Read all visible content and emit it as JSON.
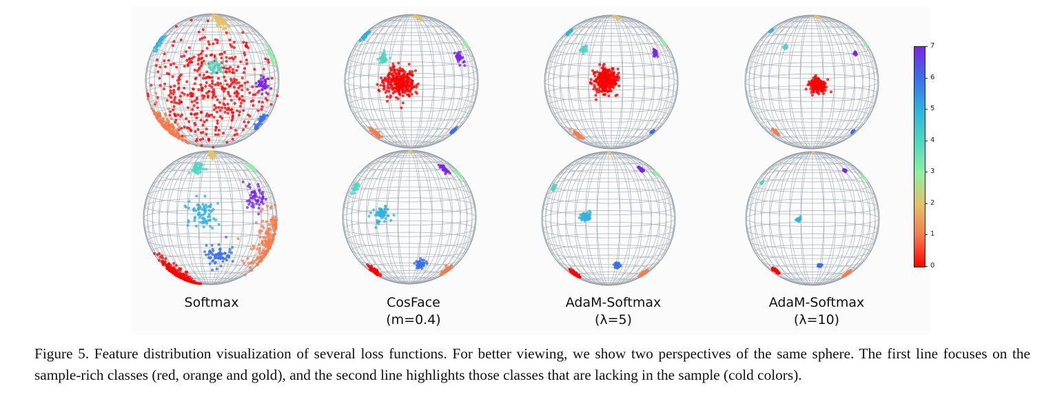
{
  "figure": {
    "panel_labels": [
      {
        "line1": "Softmax",
        "line2": ""
      },
      {
        "line1": "CosFace",
        "line2": "(m=0.4)"
      },
      {
        "line1": "AdaM-Softmax",
        "line2": "(λ=5)"
      },
      {
        "line1": "AdaM-Softmax",
        "line2": "(λ=10)"
      }
    ],
    "colorbar": {
      "ticks": [
        "0",
        "1",
        "2",
        "3",
        "4",
        "5",
        "6",
        "7"
      ],
      "class_colors": [
        "#ff0000",
        "#f47c4c",
        "#e3c26a",
        "#8ef0a0",
        "#4fd6c0",
        "#2fb2e0",
        "#3b6fe8",
        "#7a24e8"
      ]
    },
    "views": [
      {
        "row": 1,
        "method": "Softmax",
        "clusters": [
          {
            "cls": 0,
            "lat": -2,
            "lon": -3,
            "spread": 26,
            "n": 420
          },
          {
            "cls": 1,
            "lat": -42,
            "lon": -68,
            "spread": 11,
            "n": 170
          },
          {
            "cls": 2,
            "lat": 72,
            "lon": 22,
            "spread": 7,
            "n": 110
          },
          {
            "cls": 3,
            "lat": 25,
            "lon": 80,
            "spread": 4,
            "n": 30
          },
          {
            "cls": 4,
            "lat": 17,
            "lon": 2,
            "spread": 4,
            "n": 45
          },
          {
            "cls": 5,
            "lat": 35,
            "lon": -80,
            "spread": 4,
            "n": 30
          },
          {
            "cls": 6,
            "lat": -35,
            "lon": 62,
            "spread": 4,
            "n": 40
          },
          {
            "cls": 7,
            "lat": 2,
            "lon": 48,
            "spread": 4,
            "n": 40
          }
        ]
      },
      {
        "row": 1,
        "method": "CosFace",
        "clusters": [
          {
            "cls": 0,
            "lat": 6,
            "lon": -10,
            "spread": 6,
            "n": 300
          },
          {
            "cls": 1,
            "lat": -48,
            "lon": -52,
            "spread": 3,
            "n": 60
          },
          {
            "cls": 2,
            "lat": 80,
            "lon": 30,
            "spread": 3,
            "n": 45
          },
          {
            "cls": 3,
            "lat": 35,
            "lon": 82,
            "spread": 2,
            "n": 25
          },
          {
            "cls": 4,
            "lat": 26,
            "lon": -28,
            "spread": 2.5,
            "n": 40
          },
          {
            "cls": 5,
            "lat": 45,
            "lon": -78,
            "spread": 2.5,
            "n": 35
          },
          {
            "cls": 6,
            "lat": -45,
            "lon": 62,
            "spread": 2,
            "n": 25
          },
          {
            "cls": 7,
            "lat": 25,
            "lon": 53,
            "spread": 2.5,
            "n": 30
          }
        ]
      },
      {
        "row": 1,
        "method": "AdaM-Softmax λ=5",
        "clusters": [
          {
            "cls": 0,
            "lat": 8,
            "lon": -5,
            "spread": 5,
            "n": 300
          },
          {
            "cls": 1,
            "lat": -48,
            "lon": -48,
            "spread": 2.5,
            "n": 55
          },
          {
            "cls": 2,
            "lat": 82,
            "lon": 35,
            "spread": 2.5,
            "n": 40
          },
          {
            "cls": 3,
            "lat": 38,
            "lon": 82,
            "spread": 1.5,
            "n": 20
          },
          {
            "cls": 4,
            "lat": 35,
            "lon": -30,
            "spread": 1.5,
            "n": 30
          },
          {
            "cls": 5,
            "lat": 50,
            "lon": -78,
            "spread": 2,
            "n": 30
          },
          {
            "cls": 6,
            "lat": -45,
            "lon": 60,
            "spread": 1.5,
            "n": 20
          },
          {
            "cls": 7,
            "lat": 30,
            "lon": 50,
            "spread": 1.5,
            "n": 25
          }
        ]
      },
      {
        "row": 1,
        "method": "AdaM-Softmax λ=10",
        "clusters": [
          {
            "cls": 0,
            "lat": 4,
            "lon": 5,
            "spread": 3,
            "n": 200
          },
          {
            "cls": 1,
            "lat": -45,
            "lon": -48,
            "spread": 1.5,
            "n": 35
          },
          {
            "cls": 2,
            "lat": 82,
            "lon": 40,
            "spread": 1.5,
            "n": 30
          },
          {
            "cls": 3,
            "lat": 36,
            "lon": 84,
            "spread": 1,
            "n": 15
          },
          {
            "cls": 4,
            "lat": 38,
            "lon": -30,
            "spread": 1,
            "n": 20
          },
          {
            "cls": 5,
            "lat": 52,
            "lon": -80,
            "spread": 1,
            "n": 20
          },
          {
            "cls": 6,
            "lat": -45,
            "lon": 60,
            "spread": 1,
            "n": 15
          },
          {
            "cls": 7,
            "lat": 30,
            "lon": 48,
            "spread": 1,
            "n": 20
          }
        ]
      },
      {
        "row": 2,
        "method": "Softmax",
        "clusters": [
          {
            "cls": 0,
            "lat": -55,
            "lon": -58,
            "spread": 10,
            "n": 230
          },
          {
            "cls": 1,
            "lat": -20,
            "lon": 70,
            "spread": 13,
            "n": 180
          },
          {
            "cls": 2,
            "lat": 82,
            "lon": 10,
            "spread": 5,
            "n": 80
          },
          {
            "cls": 3,
            "lat": 52,
            "lon": 80,
            "spread": 3,
            "n": 30
          },
          {
            "cls": 4,
            "lat": 55,
            "lon": -20,
            "spread": 4,
            "n": 45
          },
          {
            "cls": 5,
            "lat": 10,
            "lon": -8,
            "spread": 7,
            "n": 75
          },
          {
            "cls": 6,
            "lat": -28,
            "lon": 10,
            "spread": 6,
            "n": 65
          },
          {
            "cls": 7,
            "lat": 22,
            "lon": 48,
            "spread": 5,
            "n": 55
          }
        ]
      },
      {
        "row": 2,
        "method": "CosFace",
        "clusters": [
          {
            "cls": 0,
            "lat": -50,
            "lon": -55,
            "spread": 3,
            "n": 90
          },
          {
            "cls": 1,
            "lat": -50,
            "lon": 58,
            "spread": 3,
            "n": 90
          },
          {
            "cls": 2,
            "lat": 85,
            "lon": 10,
            "spread": 2,
            "n": 35
          },
          {
            "cls": 3,
            "lat": 42,
            "lon": 82,
            "spread": 2,
            "n": 20
          },
          {
            "cls": 4,
            "lat": 30,
            "lon": -68,
            "spread": 2.5,
            "n": 30
          },
          {
            "cls": 5,
            "lat": 8,
            "lon": -25,
            "spread": 4,
            "n": 60
          },
          {
            "cls": 6,
            "lat": -38,
            "lon": 12,
            "spread": 2.5,
            "n": 55
          },
          {
            "cls": 7,
            "lat": 50,
            "lon": 55,
            "spread": 2.5,
            "n": 45
          }
        ]
      },
      {
        "row": 2,
        "method": "AdaM-Softmax λ=5",
        "clusters": [
          {
            "cls": 0,
            "lat": -52,
            "lon": -55,
            "spread": 2.5,
            "n": 80
          },
          {
            "cls": 1,
            "lat": -52,
            "lon": 58,
            "spread": 2.5,
            "n": 80
          },
          {
            "cls": 2,
            "lat": 86,
            "lon": 10,
            "spread": 1.5,
            "n": 30
          },
          {
            "cls": 3,
            "lat": 44,
            "lon": 80,
            "spread": 1.5,
            "n": 20
          },
          {
            "cls": 4,
            "lat": 30,
            "lon": -70,
            "spread": 1.5,
            "n": 25
          },
          {
            "cls": 5,
            "lat": 8,
            "lon": -20,
            "spread": 2,
            "n": 50
          },
          {
            "cls": 6,
            "lat": -38,
            "lon": 10,
            "spread": 1.5,
            "n": 45
          },
          {
            "cls": 7,
            "lat": 52,
            "lon": 52,
            "spread": 1.5,
            "n": 40
          }
        ]
      },
      {
        "row": 2,
        "method": "AdaM-Softmax λ=10",
        "clusters": [
          {
            "cls": 0,
            "lat": -48,
            "lon": -55,
            "spread": 2,
            "n": 60
          },
          {
            "cls": 1,
            "lat": -52,
            "lon": 58,
            "spread": 2,
            "n": 60
          },
          {
            "cls": 2,
            "lat": 86,
            "lon": 10,
            "spread": 1,
            "n": 20
          },
          {
            "cls": 3,
            "lat": 40,
            "lon": 80,
            "spread": 1,
            "n": 15
          },
          {
            "cls": 4,
            "lat": 35,
            "lon": -68,
            "spread": 1,
            "n": 15
          },
          {
            "cls": 5,
            "lat": 6,
            "lon": -12,
            "spread": 1,
            "n": 25
          },
          {
            "cls": 6,
            "lat": -38,
            "lon": 8,
            "spread": 1,
            "n": 25
          },
          {
            "cls": 7,
            "lat": 50,
            "lon": 50,
            "spread": 1,
            "n": 20
          }
        ]
      }
    ]
  },
  "caption": {
    "label": "Figure 5.",
    "text": "Feature distribution visualization of several loss functions. For better viewing, we show two perspectives of the same sphere. The first line focuses on the sample-rich classes (red, orange and gold), and the second line highlights those classes that are lacking in the sample (cold colors)."
  }
}
